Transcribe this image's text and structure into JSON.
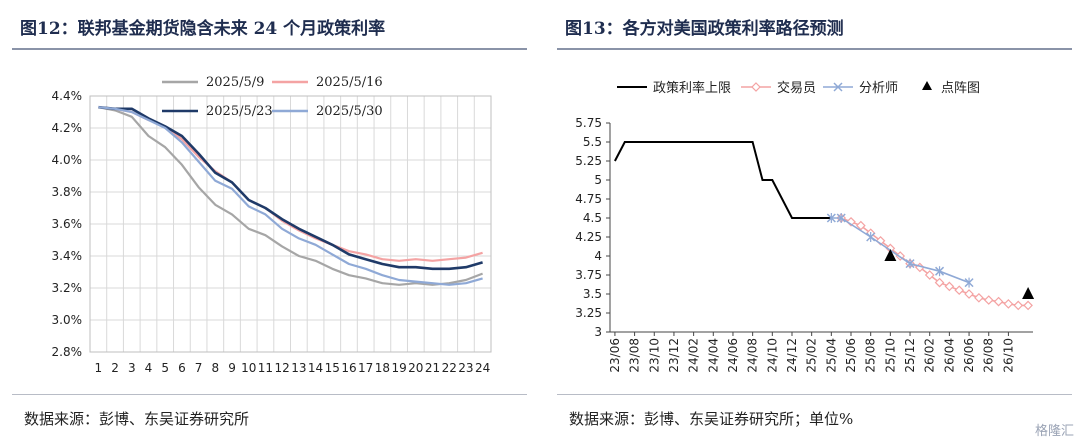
{
  "left": {
    "title": "图12：联邦基金期货隐含未来 24 个月政策利率",
    "source": "数据来源：彭博、东吴证券研究所"
  },
  "right": {
    "title": "图13：各方对美国政策利率路径预测",
    "source": "数据来源：彭博、东吴证券研究所；单位%"
  },
  "watermark": "格隆汇",
  "chart_data": [
    {
      "type": "line",
      "x": [
        1,
        2,
        3,
        4,
        5,
        6,
        7,
        8,
        9,
        10,
        11,
        12,
        13,
        14,
        15,
        16,
        17,
        18,
        19,
        20,
        21,
        22,
        23,
        24
      ],
      "y_ticks": [
        "2.8%",
        "3.0%",
        "3.2%",
        "3.4%",
        "3.6%",
        "3.8%",
        "4.0%",
        "4.2%",
        "4.4%"
      ],
      "ylim": [
        2.8,
        4.4
      ],
      "grid": true,
      "legend_position": "top",
      "series": [
        {
          "name": "2025/5/9",
          "color": "#a6a6a6",
          "values": [
            4.33,
            4.31,
            4.27,
            4.15,
            4.08,
            3.97,
            3.83,
            3.72,
            3.66,
            3.57,
            3.53,
            3.46,
            3.4,
            3.37,
            3.32,
            3.28,
            3.26,
            3.23,
            3.22,
            3.23,
            3.22,
            3.23,
            3.25,
            3.29
          ]
        },
        {
          "name": "2025/5/16",
          "color": "#f4a3a3",
          "values": [
            4.33,
            4.32,
            4.3,
            4.25,
            4.21,
            4.13,
            4.02,
            3.93,
            3.86,
            3.75,
            3.7,
            3.62,
            3.56,
            3.51,
            3.47,
            3.43,
            3.41,
            3.38,
            3.37,
            3.38,
            3.37,
            3.38,
            3.39,
            3.42
          ]
        },
        {
          "name": "2025/5/23",
          "color": "#1f3a68",
          "values": [
            4.33,
            4.32,
            4.32,
            4.26,
            4.21,
            4.15,
            4.04,
            3.92,
            3.86,
            3.75,
            3.7,
            3.63,
            3.57,
            3.52,
            3.47,
            3.41,
            3.38,
            3.35,
            3.33,
            3.33,
            3.32,
            3.32,
            3.33,
            3.36
          ]
        },
        {
          "name": "2025/5/30",
          "color": "#8fa9d6",
          "values": [
            4.33,
            4.32,
            4.3,
            4.25,
            4.2,
            4.11,
            3.99,
            3.87,
            3.82,
            3.71,
            3.66,
            3.57,
            3.51,
            3.47,
            3.41,
            3.35,
            3.32,
            3.28,
            3.25,
            3.24,
            3.23,
            3.22,
            3.23,
            3.26
          ]
        }
      ]
    },
    {
      "type": "line",
      "x_labels": [
        "23/06",
        "23/08",
        "23/10",
        "23/12",
        "24/02",
        "24/04",
        "24/06",
        "24/08",
        "24/10",
        "24/12",
        "25/02",
        "25/04",
        "25/06",
        "25/08",
        "25/10",
        "25/12",
        "26/02",
        "26/04",
        "26/06",
        "26/08",
        "26/10"
      ],
      "y_ticks": [
        "3",
        "3.25",
        "3.5",
        "3.75",
        "4",
        "4.25",
        "4.5",
        "4.75",
        "5",
        "5.25",
        "5.5",
        "5.75"
      ],
      "ylim": [
        3,
        5.75
      ],
      "grid": false,
      "legend_position": "top",
      "series": [
        {
          "name": "政策利率上限",
          "color": "#000000",
          "marker": "none",
          "points": [
            [
              0,
              5.25
            ],
            [
              1,
              5.5
            ],
            [
              14,
              5.5
            ],
            [
              15,
              5.0
            ],
            [
              16,
              5.0
            ],
            [
              18,
              4.5
            ],
            [
              22,
              4.5
            ]
          ]
        },
        {
          "name": "交易员",
          "color": "#f4a3a3",
          "marker": "diamond",
          "points": [
            [
              23,
              4.5
            ],
            [
              24,
              4.45
            ],
            [
              25,
              4.4
            ],
            [
              26,
              4.3
            ],
            [
              27,
              4.2
            ],
            [
              28,
              4.1
            ],
            [
              29,
              4.0
            ],
            [
              30,
              3.9
            ],
            [
              31,
              3.85
            ],
            [
              32,
              3.75
            ],
            [
              33,
              3.65
            ],
            [
              34,
              3.6
            ],
            [
              35,
              3.55
            ],
            [
              36,
              3.5
            ],
            [
              37,
              3.45
            ],
            [
              38,
              3.42
            ],
            [
              39,
              3.4
            ],
            [
              40,
              3.37
            ],
            [
              41,
              3.35
            ],
            [
              42,
              3.35
            ]
          ]
        },
        {
          "name": "分析师",
          "color": "#8fa9d6",
          "marker": "x",
          "points": [
            [
              22,
              4.5
            ],
            [
              23,
              4.5
            ],
            [
              26,
              4.25
            ],
            [
              30,
              3.9
            ],
            [
              33,
              3.8
            ],
            [
              36,
              3.65
            ]
          ]
        },
        {
          "name": "点阵图",
          "color": "#000000",
          "marker": "triangle",
          "points": [
            [
              28,
              4.0
            ],
            [
              42,
              3.5
            ]
          ]
        }
      ]
    }
  ]
}
